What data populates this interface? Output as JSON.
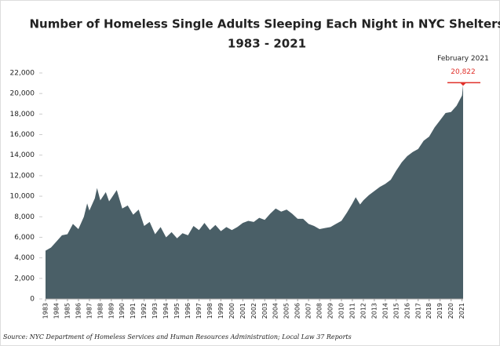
{
  "chart_data": {
    "type": "area",
    "title": "Number of Homeless Single Adults Sleeping Each Night in NYC Shelters",
    "subtitle": "1983 - 2021",
    "source": "Source:  NYC Department of Homeless Services and Human Resources Administration; Local Law 37 Reports",
    "color": "#4a5f67",
    "x": [
      1983,
      1983.5,
      1984,
      1984.5,
      1985,
      1985.5,
      1986,
      1986.5,
      1986.8,
      1987,
      1987.5,
      1987.7,
      1988,
      1988.5,
      1988.8,
      1989,
      1989.5,
      1990,
      1990.5,
      1991,
      1991.5,
      1992,
      1992.5,
      1993,
      1993.5,
      1994,
      1994.5,
      1995,
      1995.5,
      1996,
      1996.5,
      1997,
      1997.5,
      1998,
      1998.5,
      1999,
      1999.5,
      2000,
      2000.5,
      2001,
      2001.5,
      2002,
      2002.5,
      2003,
      2003.5,
      2004,
      2004.5,
      2005,
      2005.5,
      2006,
      2006.5,
      2007,
      2007.5,
      2008,
      2008.5,
      2009,
      2009.5,
      2010,
      2010.5,
      2011,
      2011.3,
      2011.7,
      2012,
      2012.5,
      2013,
      2013.5,
      2014,
      2014.5,
      2015,
      2015.5,
      2016,
      2016.5,
      2017,
      2017.5,
      2018,
      2018.5,
      2019,
      2019.5,
      2020,
      2020.5,
      2021,
      2021.1
    ],
    "values": [
      4700,
      5000,
      5600,
      6200,
      6300,
      7300,
      6800,
      8000,
      9300,
      8600,
      9800,
      10800,
      9600,
      10400,
      9500,
      9800,
      10600,
      8800,
      9100,
      8200,
      8700,
      7100,
      7500,
      6300,
      7000,
      6000,
      6500,
      5900,
      6400,
      6200,
      7100,
      6700,
      7400,
      6700,
      7200,
      6600,
      7000,
      6700,
      7000,
      7400,
      7600,
      7500,
      7900,
      7700,
      8300,
      8800,
      8500,
      8700,
      8300,
      7800,
      7800,
      7300,
      7100,
      6800,
      6900,
      7000,
      7300,
      7600,
      8400,
      9300,
      9900,
      9200,
      9600,
      10100,
      10500,
      10900,
      11200,
      11600,
      12500,
      13300,
      13900,
      14300,
      14600,
      15400,
      15800,
      16700,
      17400,
      18100,
      18200,
      18800,
      19800,
      20822
    ],
    "xlim": [
      1983,
      2021.1
    ],
    "xticks": [
      1983,
      1984,
      1985,
      1986,
      1987,
      1988,
      1989,
      1990,
      1991,
      1992,
      1993,
      1994,
      1995,
      1996,
      1997,
      1998,
      1999,
      2000,
      2001,
      2002,
      2003,
      2004,
      2005,
      2006,
      2007,
      2008,
      2009,
      2010,
      2011,
      2012,
      2013,
      2014,
      2015,
      2016,
      2017,
      2018,
      2019,
      2020,
      2021
    ],
    "ylim": [
      0,
      22000
    ],
    "yticks": [
      0,
      {
        "value": 2000,
        "label": "2,000"
      },
      {
        "value": 4000,
        "label": "4,000"
      },
      {
        "value": 6000,
        "label": "6,000"
      },
      {
        "value": 8000,
        "label": "8,000"
      },
      {
        "value": 10000,
        "label": "10,000"
      },
      {
        "value": 12000,
        "label": "12,000"
      },
      {
        "value": 14000,
        "label": "14,000"
      },
      {
        "value": 16000,
        "label": "16,000"
      },
      {
        "value": 18000,
        "label": "18,000"
      },
      {
        "value": 20000,
        "label": "20,000"
      },
      {
        "value": 22000,
        "label": "22,000"
      }
    ],
    "annotation": {
      "date": "February 2021",
      "value": 20822,
      "value_label": "20,822",
      "color": "#e0302a"
    }
  }
}
